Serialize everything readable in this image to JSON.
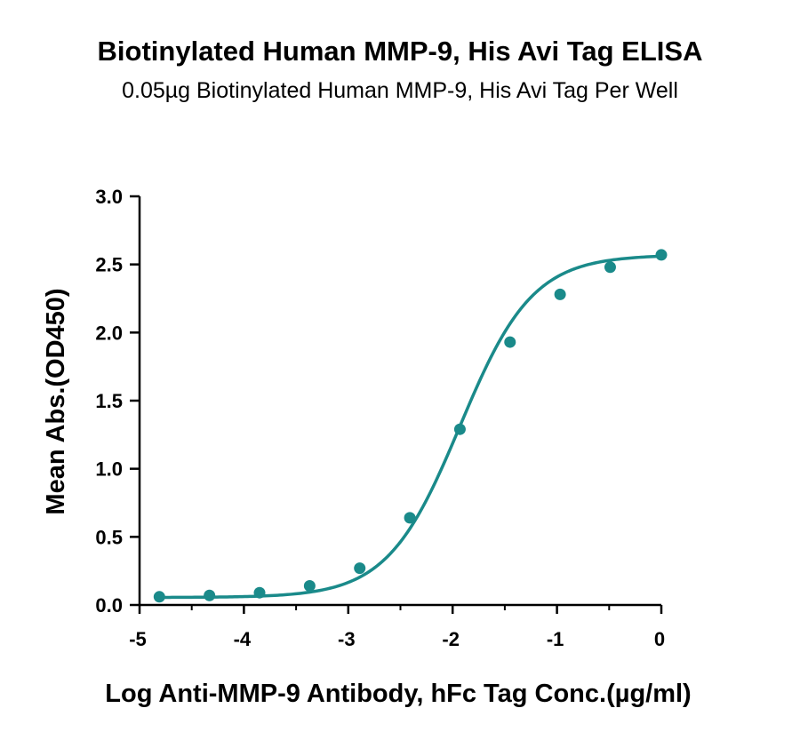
{
  "chart_data": {
    "type": "scatter",
    "title": "Biotinylated Human MMP-9, His Avi Tag ELISA",
    "subtitle": "0.05µg Biotinylated Human MMP-9, His Avi Tag Per Well",
    "xlabel": "Log Anti-MMP-9 Antibody, hFc Tag Conc.(µg/ml)",
    "ylabel": "Mean Abs.(OD450)",
    "xlim": [
      -5,
      0
    ],
    "ylim": [
      0,
      3.0
    ],
    "xticks": [
      "-5",
      "-4",
      "-3",
      "-2",
      "-1",
      "0"
    ],
    "yticks": [
      "0.0",
      "0.5",
      "1.0",
      "1.5",
      "2.0",
      "2.5",
      "3.0"
    ],
    "grid": false,
    "color": "#1a8a8a",
    "series": [
      {
        "x": [
          -4.81,
          -4.33,
          -3.85,
          -3.37,
          -2.89,
          -2.41,
          -1.93,
          -1.45,
          -0.97,
          -0.49,
          0.0
        ],
        "y": [
          0.06,
          0.07,
          0.09,
          0.14,
          0.27,
          0.64,
          1.29,
          1.93,
          2.28,
          2.48,
          2.57
        ]
      }
    ],
    "fit": {
      "model": "4PL",
      "bottom": 0.055,
      "top": 2.57,
      "log_ec50": -1.93,
      "hill": 1.25
    }
  }
}
